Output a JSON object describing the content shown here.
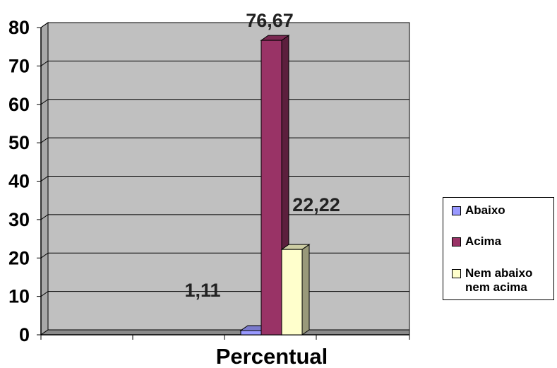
{
  "chart_data": {
    "type": "bar",
    "categories": [
      "Percentual"
    ],
    "series": [
      {
        "name": "Abaixo",
        "values": [
          1.11
        ],
        "label": "1,11",
        "color": "#9999FF"
      },
      {
        "name": "Acima",
        "values": [
          76.67
        ],
        "label": "76,67",
        "color": "#993366"
      },
      {
        "name": "Nem abaixo\nnem acima",
        "values": [
          22.22
        ],
        "label": "22,22",
        "color": "#FFFFCC"
      }
    ],
    "xlabel": "Percentual",
    "ylabel": "",
    "ylim": [
      0,
      80
    ],
    "yticks": [
      "0",
      "10",
      "20",
      "30",
      "40",
      "50",
      "60",
      "70",
      "80"
    ],
    "grid": true,
    "legend": "right",
    "style": "3d",
    "wall_color": "#C0C0C0"
  }
}
